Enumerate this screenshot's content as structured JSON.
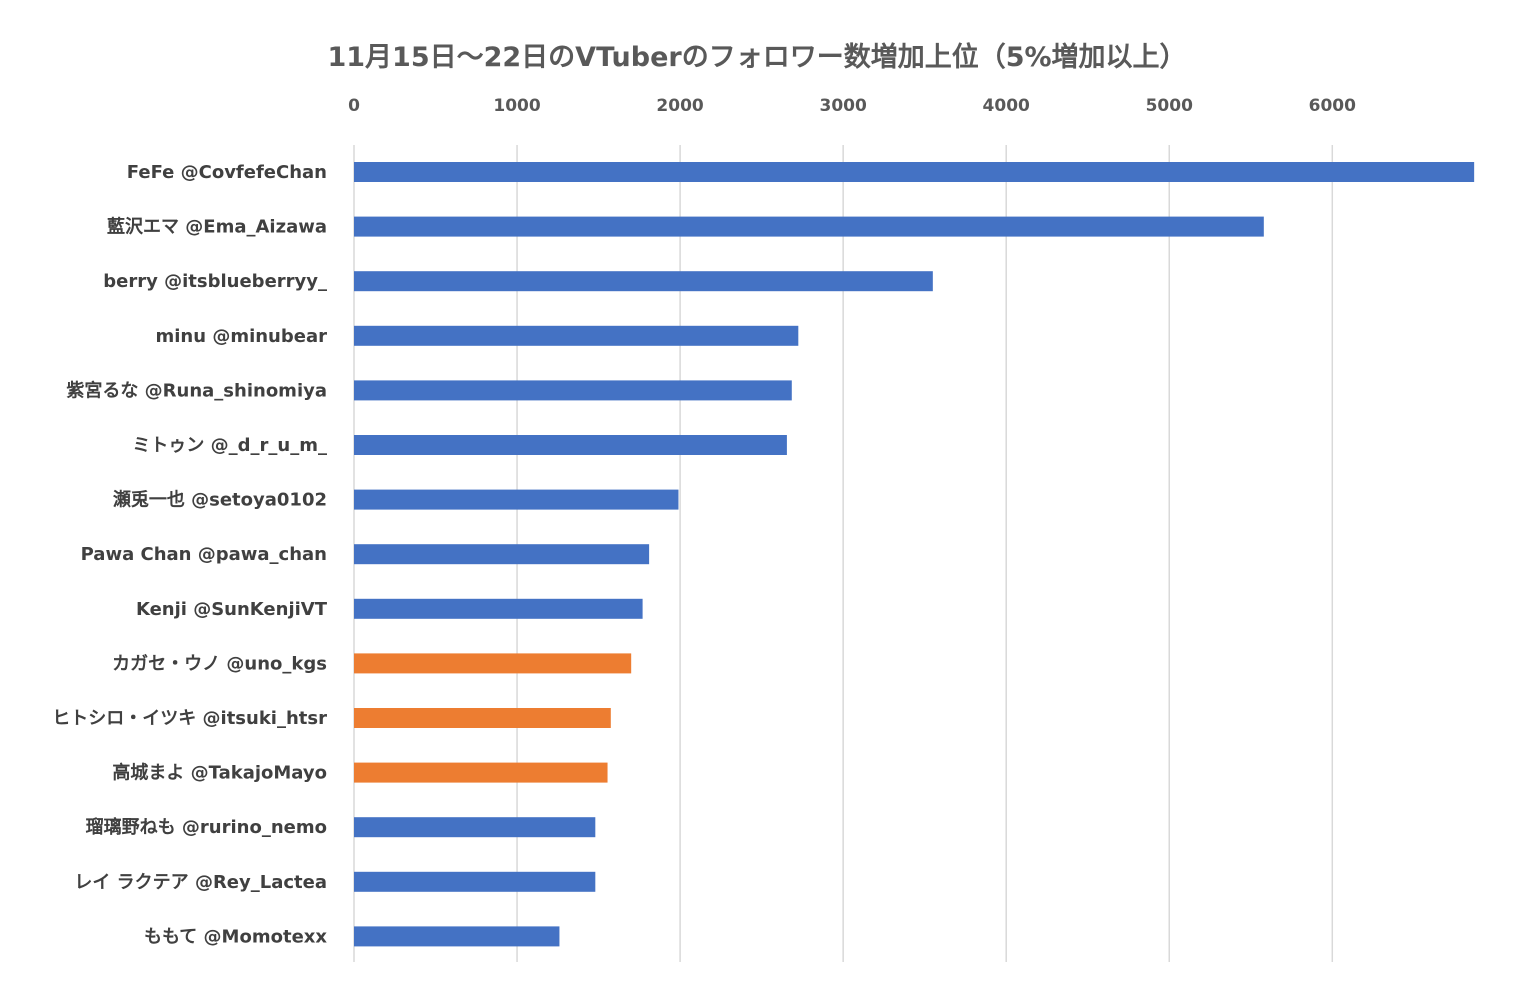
{
  "chart_data": {
    "type": "bar",
    "orientation": "horizontal",
    "title": "11月15日〜22日のVTuberのフォロワー数増加上位（5%増加以上）",
    "xlabel": "",
    "ylabel": "",
    "x_axis_position": "top",
    "xlim": [
      0,
      6900
    ],
    "xticks": [
      0,
      1000,
      2000,
      3000,
      4000,
      5000,
      6000
    ],
    "grid": true,
    "legend": "none",
    "categories": [
      "FeFe @CovfefeChan",
      "藍沢エマ @Ema_Aizawa",
      "berry @itsblueberryy_",
      "minu @minubear",
      "紫宮るな @Runa_shinomiya",
      "ミトゥン @_d_r_u_m_",
      "瀬兎一也 @setoya0102",
      "Pawa Chan @pawa_chan",
      "Kenji @SunKenjiVT",
      "カガセ・ウノ @uno_kgs",
      "ヒトシロ・イツキ @itsuki_htsr",
      "高城まよ @TakajoMayo",
      "瑠璃野ねも @rurino_nemo",
      "レイ ラクテア @Rey_Lactea",
      "ももて @Momotexx"
    ],
    "values": [
      6870,
      5580,
      3550,
      2725,
      2685,
      2655,
      1990,
      1810,
      1770,
      1700,
      1575,
      1555,
      1480,
      1480,
      1260
    ],
    "bar_colors": [
      "#4472c4",
      "#4472c4",
      "#4472c4",
      "#4472c4",
      "#4472c4",
      "#4472c4",
      "#4472c4",
      "#4472c4",
      "#4472c4",
      "#ed7d31",
      "#ed7d31",
      "#ed7d31",
      "#4472c4",
      "#4472c4",
      "#4472c4"
    ],
    "colors": {
      "primary": "#4472c4",
      "highlight": "#ed7d31",
      "grid": "#d9d9d9",
      "text": "#595959"
    }
  }
}
